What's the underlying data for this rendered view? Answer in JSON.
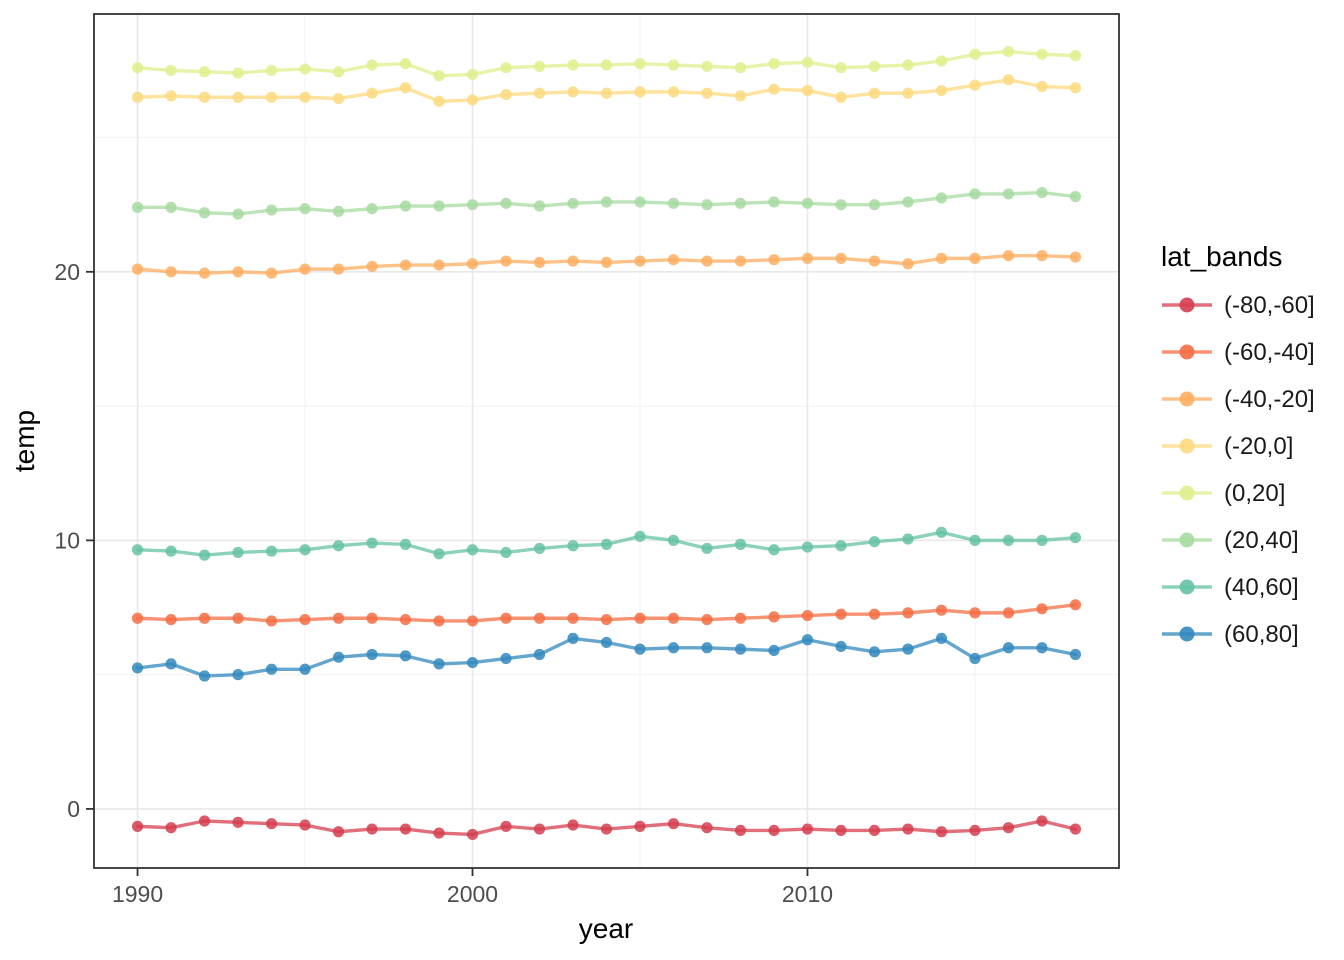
{
  "chart_data": {
    "type": "line",
    "title": "",
    "xlabel": "year",
    "ylabel": "temp",
    "legend_title": "lat_bands",
    "legend_position": "right",
    "grid": true,
    "x": [
      1990,
      1991,
      1992,
      1993,
      1994,
      1995,
      1996,
      1997,
      1998,
      1999,
      2000,
      2001,
      2002,
      2003,
      2004,
      2005,
      2006,
      2007,
      2008,
      2009,
      2010,
      2011,
      2012,
      2013,
      2014,
      2015,
      2016,
      2017,
      2018
    ],
    "series": [
      {
        "name": "(-80,-60]",
        "color": "#D53E4F",
        "values": [
          -0.65,
          -0.7,
          -0.45,
          -0.5,
          -0.55,
          -0.6,
          -0.85,
          -0.75,
          -0.75,
          -0.9,
          -0.95,
          -0.65,
          -0.75,
          -0.6,
          -0.75,
          -0.65,
          -0.55,
          -0.7,
          -0.8,
          -0.8,
          -0.75,
          -0.8,
          -0.8,
          -0.75,
          -0.85,
          -0.8,
          -0.7,
          -0.45,
          -0.75
        ]
      },
      {
        "name": "(-60,-40]",
        "color": "#F46D43",
        "values": [
          7.1,
          7.05,
          7.1,
          7.1,
          7.0,
          7.05,
          7.1,
          7.1,
          7.05,
          7.0,
          7.0,
          7.1,
          7.1,
          7.1,
          7.05,
          7.1,
          7.1,
          7.05,
          7.1,
          7.15,
          7.2,
          7.25,
          7.25,
          7.3,
          7.4,
          7.3,
          7.3,
          7.45,
          7.6
        ]
      },
      {
        "name": "(-40,-20]",
        "color": "#FDAE61",
        "values": [
          20.1,
          20.0,
          19.95,
          20.0,
          19.95,
          20.1,
          20.1,
          20.2,
          20.25,
          20.25,
          20.3,
          20.4,
          20.35,
          20.4,
          20.35,
          20.4,
          20.45,
          20.4,
          20.4,
          20.45,
          20.5,
          20.5,
          20.4,
          20.3,
          20.5,
          20.5,
          20.6,
          20.6,
          20.55
        ]
      },
      {
        "name": "(-20,0]",
        "color": "#FDD97F",
        "values": [
          26.5,
          26.55,
          26.5,
          26.5,
          26.5,
          26.5,
          26.45,
          26.65,
          26.85,
          26.35,
          26.4,
          26.6,
          26.65,
          26.7,
          26.65,
          26.7,
          26.7,
          26.65,
          26.55,
          26.8,
          26.75,
          26.5,
          26.65,
          26.65,
          26.75,
          26.95,
          27.15,
          26.9,
          26.85
        ]
      },
      {
        "name": "(0,20]",
        "color": "#DFEF8C",
        "values": [
          27.6,
          27.5,
          27.45,
          27.4,
          27.5,
          27.55,
          27.45,
          27.7,
          27.75,
          27.3,
          27.35,
          27.6,
          27.65,
          27.7,
          27.7,
          27.75,
          27.7,
          27.65,
          27.6,
          27.75,
          27.8,
          27.6,
          27.65,
          27.7,
          27.85,
          28.1,
          28.2,
          28.1,
          28.05
        ]
      },
      {
        "name": "(20,40]",
        "color": "#A6DBA0",
        "values": [
          22.4,
          22.4,
          22.2,
          22.15,
          22.3,
          22.35,
          22.25,
          22.35,
          22.45,
          22.45,
          22.5,
          22.55,
          22.45,
          22.55,
          22.6,
          22.6,
          22.55,
          22.5,
          22.55,
          22.6,
          22.55,
          22.5,
          22.5,
          22.6,
          22.75,
          22.9,
          22.9,
          22.95,
          22.8
        ]
      },
      {
        "name": "(40,60]",
        "color": "#66C2A5",
        "values": [
          9.65,
          9.6,
          9.45,
          9.55,
          9.6,
          9.65,
          9.8,
          9.9,
          9.85,
          9.5,
          9.65,
          9.55,
          9.7,
          9.8,
          9.85,
          10.15,
          10.0,
          9.7,
          9.85,
          9.65,
          9.75,
          9.8,
          9.95,
          10.05,
          10.3,
          10.0,
          10.0,
          10.0,
          10.1
        ]
      },
      {
        "name": "(60,80]",
        "color": "#3288BD",
        "values": [
          5.25,
          5.4,
          4.95,
          5.0,
          5.2,
          5.2,
          5.65,
          5.75,
          5.7,
          5.4,
          5.45,
          5.6,
          5.75,
          6.35,
          6.2,
          5.95,
          6.0,
          6.0,
          5.95,
          5.9,
          6.3,
          6.05,
          5.85,
          5.95,
          6.35,
          5.6,
          6.0,
          6.0,
          5.75
        ]
      }
    ],
    "x_ticks": [
      {
        "value": 1990,
        "label": "1990"
      },
      {
        "value": 2000,
        "label": "2000"
      },
      {
        "value": 2010,
        "label": "2010"
      }
    ],
    "y_ticks": [
      {
        "value": 0,
        "label": "0"
      },
      {
        "value": 10,
        "label": "10"
      },
      {
        "value": 20,
        "label": "20"
      }
    ],
    "x_minor": [
      1995,
      2005,
      2015
    ],
    "y_minor": [
      5,
      15,
      25
    ],
    "xlim": [
      1988.7,
      2019.3
    ],
    "ylim": [
      -2.2,
      29.6
    ]
  },
  "style": {
    "background": "#ffffff",
    "panel_fill": "#ffffff",
    "panel_border": "#333333",
    "grid_major": "#e8e8e8",
    "grid_minor": "#f4f4f4",
    "tick_color": "#333333",
    "tick_label_color": "#4d4d4d"
  }
}
